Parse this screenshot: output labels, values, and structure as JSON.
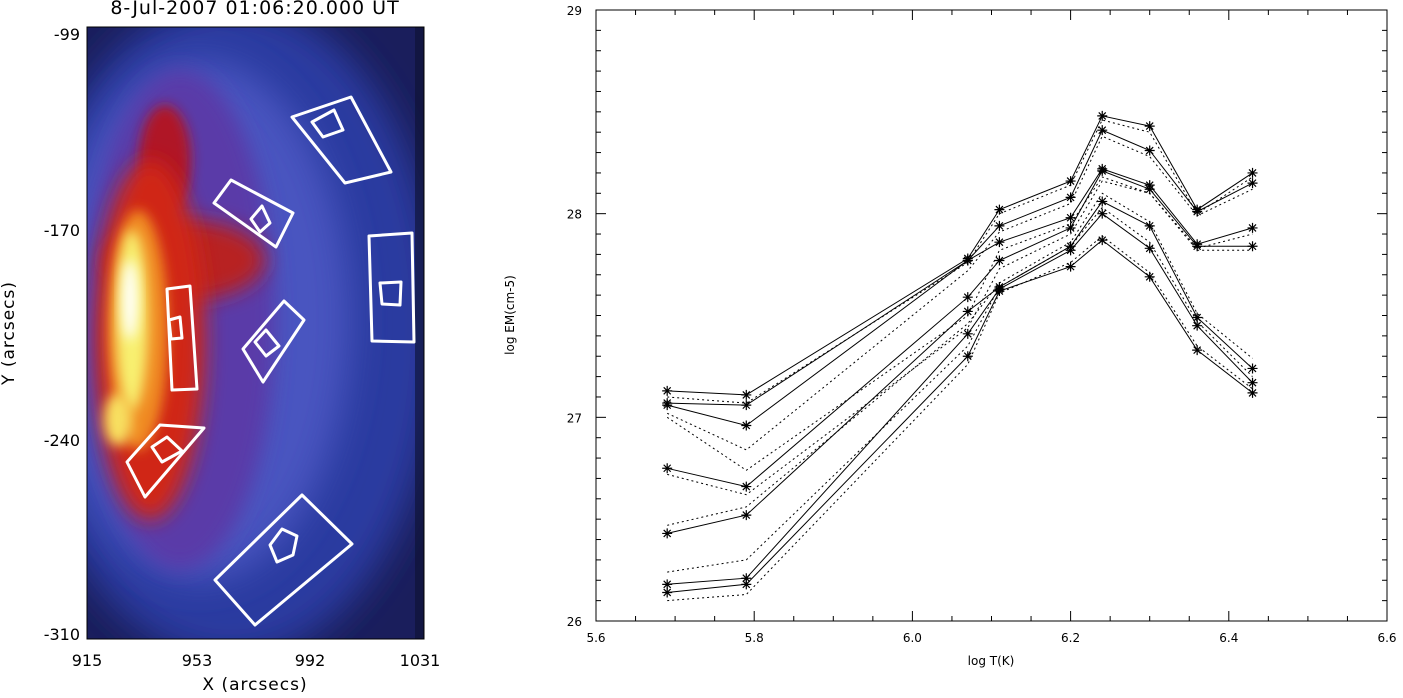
{
  "left_image": {
    "title": "8-Jul-2007 01:06:20.000 UT",
    "xlabel": "X (arcsecs)",
    "ylabel": "Y (arcsecs)",
    "xticks": [
      "915",
      "953",
      "992",
      "1031"
    ],
    "yticks": [
      "-99",
      "-170",
      "-240",
      "-310"
    ],
    "xlim": [
      915,
      1031
    ],
    "ylim": [
      -310,
      -99
    ],
    "colormap": [
      "#1a1e5c",
      "#2c3a9a",
      "#5a4fb0",
      "#b02030",
      "#e03a20",
      "#f0a020",
      "#f8f070",
      "#ffffff"
    ],
    "region_color": "#ffffff"
  },
  "chart_data": {
    "type": "line",
    "title": "",
    "xlabel": "log T(K)",
    "ylabel": "log EM(cm-5)",
    "xlim": [
      5.6,
      6.6
    ],
    "ylim": [
      26,
      29
    ],
    "xticks": [
      "5.6",
      "5.8",
      "6.0",
      "6.2",
      "6.4",
      "6.6"
    ],
    "yticks": [
      "26",
      "27",
      "28",
      "29"
    ],
    "x": [
      5.69,
      5.79,
      6.07,
      6.11,
      6.2,
      6.24,
      6.3,
      6.36,
      6.43
    ],
    "series": [
      {
        "style": "solid",
        "marker": "asterisk",
        "values": [
          27.13,
          27.11,
          27.78,
          28.02,
          28.16,
          28.48,
          28.43,
          28.02,
          28.2
        ]
      },
      {
        "style": "solid",
        "marker": "asterisk",
        "values": [
          27.07,
          27.06,
          27.77,
          27.94,
          28.08,
          28.41,
          28.31,
          28.01,
          28.15
        ]
      },
      {
        "style": "solid",
        "marker": "asterisk",
        "values": [
          27.06,
          26.96,
          27.77,
          27.86,
          27.98,
          28.22,
          28.14,
          27.85,
          27.93
        ]
      },
      {
        "style": "solid",
        "marker": "asterisk",
        "values": [
          26.75,
          26.66,
          27.59,
          27.77,
          27.93,
          28.21,
          28.12,
          27.84,
          27.84
        ]
      },
      {
        "style": "solid",
        "marker": "asterisk",
        "values": [
          26.43,
          26.52,
          27.52,
          27.64,
          27.84,
          28.06,
          27.94,
          27.49,
          27.24
        ]
      },
      {
        "style": "solid",
        "marker": "asterisk",
        "values": [
          26.18,
          26.21,
          27.41,
          27.63,
          27.82,
          28.0,
          27.83,
          27.45,
          27.17
        ]
      },
      {
        "style": "solid",
        "marker": "asterisk",
        "values": [
          26.14,
          26.18,
          27.3,
          27.62,
          27.74,
          27.87,
          27.69,
          27.33,
          27.12
        ]
      },
      {
        "style": "dotted",
        "marker": "none",
        "values": [
          27.1,
          27.07,
          27.76,
          28.0,
          28.14,
          28.46,
          28.4,
          28.0,
          28.18
        ]
      },
      {
        "style": "dotted",
        "marker": "none",
        "values": [
          27.02,
          26.84,
          27.72,
          27.91,
          28.05,
          28.38,
          28.28,
          27.99,
          28.12
        ]
      },
      {
        "style": "dotted",
        "marker": "none",
        "values": [
          27.0,
          26.74,
          27.5,
          27.82,
          27.95,
          28.18,
          28.1,
          27.83,
          27.9
        ]
      },
      {
        "style": "dotted",
        "marker": "none",
        "values": [
          26.72,
          26.62,
          27.44,
          27.73,
          27.9,
          28.16,
          28.1,
          27.82,
          27.82
        ]
      },
      {
        "style": "dotted",
        "marker": "none",
        "values": [
          26.47,
          26.56,
          27.46,
          27.66,
          27.86,
          28.1,
          27.96,
          27.51,
          27.29
        ]
      },
      {
        "style": "dotted",
        "marker": "none",
        "values": [
          26.24,
          26.3,
          27.35,
          27.64,
          27.84,
          28.03,
          27.86,
          27.47,
          27.2
        ]
      },
      {
        "style": "dotted",
        "marker": "none",
        "values": [
          26.1,
          26.13,
          27.26,
          27.61,
          27.76,
          27.89,
          27.71,
          27.35,
          27.14
        ]
      }
    ],
    "grid": false,
    "legend": "none"
  }
}
